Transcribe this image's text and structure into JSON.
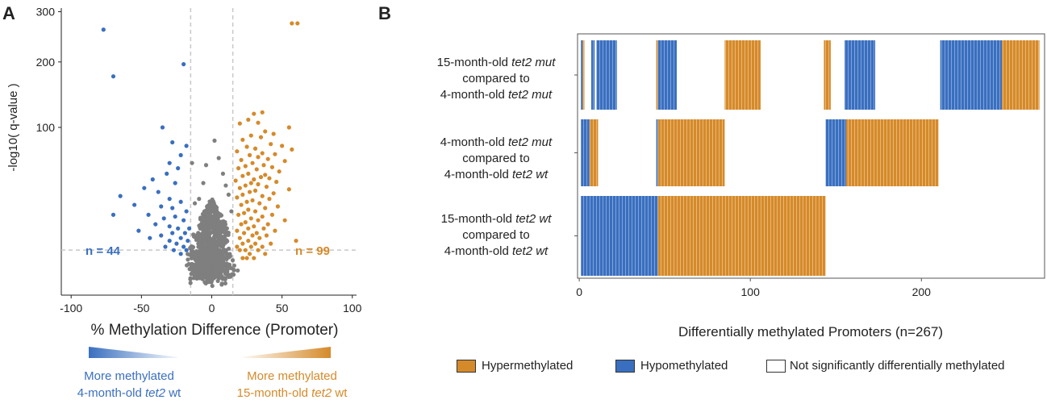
{
  "panelA": {
    "letter": "A",
    "ylabel": "-log10( q-value )",
    "xlabel": "% Methylation Difference (Promoter)",
    "n_left": "n = 44",
    "n_right": "n = 99",
    "color_hypo": "#3a6fbf",
    "color_hyper": "#d58a2a",
    "color_ns": "#7f7f7f",
    "legend_left": {
      "line1": "More methylated",
      "line2_prefix": "4-month-old ",
      "line2_italic": "tet2",
      "line2_suffix": " wt"
    },
    "legend_right": {
      "line1": "More methylated",
      "line2_prefix": "15-month-old ",
      "line2_italic": "tet2",
      "line2_suffix": " wt"
    }
  },
  "panelB": {
    "letter": "B",
    "xlabel": "Differentially methylated Promoters (n=267)",
    "legend": {
      "hyper": "Hypermethylated",
      "hypo": "Hypomethylated",
      "ns": "Not significantly differentially methylated"
    },
    "rows": [
      {
        "a_pre": "15-month-old ",
        "a_it": "tet2 mut",
        "b": "compared to",
        "c_pre": "4-month-old ",
        "c_it": "tet2 mut"
      },
      {
        "a_pre": "4-month-old ",
        "a_it": "tet2 mut",
        "b": "compared to",
        "c_pre": "4-month-old ",
        "c_it": "tet2 wt"
      },
      {
        "a_pre": "15-month-old ",
        "a_it": "tet2 wt",
        "b": "compared to",
        "c_pre": "4-month-old ",
        "c_it": "tet2 wt"
      }
    ]
  },
  "chart_data": [
    {
      "type": "scatter",
      "title": "",
      "xlabel": "% Methylation Difference (Promoter)",
      "ylabel": "-log10( q-value )",
      "xlim": [
        -100,
        100
      ],
      "x_ticks": [
        -100,
        -50,
        0,
        50,
        100
      ],
      "y_ticks": [
        100,
        200,
        300
      ],
      "thresholds": {
        "x": [
          -15,
          15
        ]
      },
      "series": [
        {
          "name": "Hypomethylated",
          "color": "#3a6fbf",
          "count": 44,
          "points": [
            [
              -77,
              262
            ],
            [
              -70,
              175
            ],
            [
              -20,
              196
            ],
            [
              -35,
              100
            ],
            [
              -28,
              82
            ],
            [
              -18,
              78
            ],
            [
              -22,
              68
            ],
            [
              -30,
              60
            ],
            [
              -24,
              55
            ],
            [
              -32,
              50
            ],
            [
              -42,
              45
            ],
            [
              -26,
              42
            ],
            [
              -48,
              38
            ],
            [
              -38,
              35
            ],
            [
              -65,
              32
            ],
            [
              -30,
              30
            ],
            [
              -22,
              28
            ],
            [
              -55,
              26
            ],
            [
              -36,
              25
            ],
            [
              -28,
              24
            ],
            [
              -18,
              22
            ],
            [
              -70,
              20
            ],
            [
              -45,
              20
            ],
            [
              -26,
              19
            ],
            [
              -34,
              18
            ],
            [
              -20,
              17
            ],
            [
              -40,
              15
            ],
            [
              -30,
              14
            ],
            [
              -24,
              13
            ],
            [
              -16,
              13
            ],
            [
              -52,
              12
            ],
            [
              -28,
              11
            ],
            [
              -19,
              11
            ],
            [
              -36,
              10
            ],
            [
              -22,
              9
            ],
            [
              -44,
              9
            ],
            [
              -17,
              8
            ],
            [
              -30,
              8
            ],
            [
              -25,
              7
            ],
            [
              -20,
              6
            ],
            [
              -33,
              6
            ],
            [
              -18,
              5
            ],
            [
              -27,
              5
            ],
            [
              -22,
              4
            ]
          ]
        },
        {
          "name": "Hypermethylated",
          "color": "#d58a2a",
          "count": 99,
          "points": [
            [
              57,
              275
            ],
            [
              61,
              275
            ],
            [
              36,
              120
            ],
            [
              30,
              118
            ],
            [
              26,
              110
            ],
            [
              33,
              106
            ],
            [
              20,
              105
            ],
            [
              55,
              100
            ],
            [
              38,
              95
            ],
            [
              44,
              92
            ],
            [
              28,
              90
            ],
            [
              35,
              88
            ],
            [
              22,
              85
            ],
            [
              42,
              80
            ],
            [
              50,
              78
            ],
            [
              25,
              77
            ],
            [
              31,
              75
            ],
            [
              57,
              74
            ],
            [
              18,
              72
            ],
            [
              36,
              70
            ],
            [
              45,
              69
            ],
            [
              27,
              68
            ],
            [
              33,
              66
            ],
            [
              40,
              64
            ],
            [
              21,
              63
            ],
            [
              52,
              62
            ],
            [
              29,
              60
            ],
            [
              37,
              58
            ],
            [
              24,
              57
            ],
            [
              43,
              56
            ],
            [
              19,
              55
            ],
            [
              32,
              54
            ],
            [
              48,
              52
            ],
            [
              26,
              50
            ],
            [
              38,
              49
            ],
            [
              22,
              48
            ],
            [
              35,
              47
            ],
            [
              41,
              46
            ],
            [
              30,
              45
            ],
            [
              17,
              44
            ],
            [
              46,
              43
            ],
            [
              28,
              42
            ],
            [
              33,
              41
            ],
            [
              24,
              40
            ],
            [
              39,
              39
            ],
            [
              20,
              38
            ],
            [
              55,
              37
            ],
            [
              31,
              36
            ],
            [
              27,
              35
            ],
            [
              44,
              34
            ],
            [
              22,
              33
            ],
            [
              36,
              32
            ],
            [
              18,
              31
            ],
            [
              41,
              30
            ],
            [
              29,
              29
            ],
            [
              25,
              28
            ],
            [
              34,
              27
            ],
            [
              21,
              26
            ],
            [
              47,
              25
            ],
            [
              38,
              24
            ],
            [
              26,
              23
            ],
            [
              31,
              22
            ],
            [
              23,
              21
            ],
            [
              43,
              20
            ],
            [
              19,
              20
            ],
            [
              36,
              19
            ],
            [
              28,
              18
            ],
            [
              52,
              17
            ],
            [
              33,
              17
            ],
            [
              24,
              16
            ],
            [
              40,
              15
            ],
            [
              21,
              15
            ],
            [
              30,
              14
            ],
            [
              26,
              13
            ],
            [
              37,
              13
            ],
            [
              18,
              12
            ],
            [
              45,
              12
            ],
            [
              32,
              11
            ],
            [
              23,
              11
            ],
            [
              29,
              10
            ],
            [
              39,
              10
            ],
            [
              20,
              9
            ],
            [
              34,
              9
            ],
            [
              26,
              8
            ],
            [
              60,
              8
            ],
            [
              22,
              7
            ],
            [
              31,
              7
            ],
            [
              42,
              7
            ],
            [
              18,
              6
            ],
            [
              28,
              6
            ],
            [
              36,
              6
            ],
            [
              24,
              5
            ],
            [
              33,
              5
            ],
            [
              20,
              5
            ],
            [
              27,
              4
            ],
            [
              38,
              4
            ],
            [
              22,
              3
            ],
            [
              30,
              3
            ],
            [
              25,
              3
            ]
          ]
        }
      ]
    },
    {
      "type": "bar",
      "title": "",
      "xlabel": "Differentially methylated Promoters (n=267)",
      "ylabel": "",
      "xlim": [
        -1,
        272
      ],
      "x_ticks": [
        0,
        100,
        200
      ],
      "categories": [
        "15-month-old tet2 mut compared to 4-month-old tet2 mut",
        "4-month-old tet2 mut compared to 4-month-old tet2 wt",
        "15-month-old tet2 wt compared to 4-month-old tet2 wt"
      ],
      "segments": [
        [
          {
            "start": 1,
            "end": 2,
            "status": "hypo"
          },
          {
            "start": 2,
            "end": 3,
            "status": "hyper"
          },
          {
            "start": 7,
            "end": 9,
            "status": "hypo"
          },
          {
            "start": 10,
            "end": 22,
            "status": "hypo"
          },
          {
            "start": 45,
            "end": 46,
            "status": "hyper"
          },
          {
            "start": 46,
            "end": 57,
            "status": "hypo"
          },
          {
            "start": 85,
            "end": 106,
            "status": "hyper"
          },
          {
            "start": 143,
            "end": 147,
            "status": "hyper"
          },
          {
            "start": 155,
            "end": 173,
            "status": "hypo"
          },
          {
            "start": 211,
            "end": 247,
            "status": "hypo"
          },
          {
            "start": 247,
            "end": 269,
            "status": "hyper"
          }
        ],
        [
          {
            "start": 1,
            "end": 6,
            "status": "hypo"
          },
          {
            "start": 6,
            "end": 11,
            "status": "hyper"
          },
          {
            "start": 45,
            "end": 46,
            "status": "hypo"
          },
          {
            "start": 46,
            "end": 85,
            "status": "hyper"
          },
          {
            "start": 144,
            "end": 156,
            "status": "hypo"
          },
          {
            "start": 156,
            "end": 210,
            "status": "hyper"
          }
        ],
        [
          {
            "start": 1,
            "end": 46,
            "status": "hypo"
          },
          {
            "start": 46,
            "end": 144,
            "status": "hyper"
          }
        ]
      ],
      "legend": [
        "Hypermethylated",
        "Hypomethylated",
        "Not significantly differentially methylated"
      ]
    }
  ]
}
